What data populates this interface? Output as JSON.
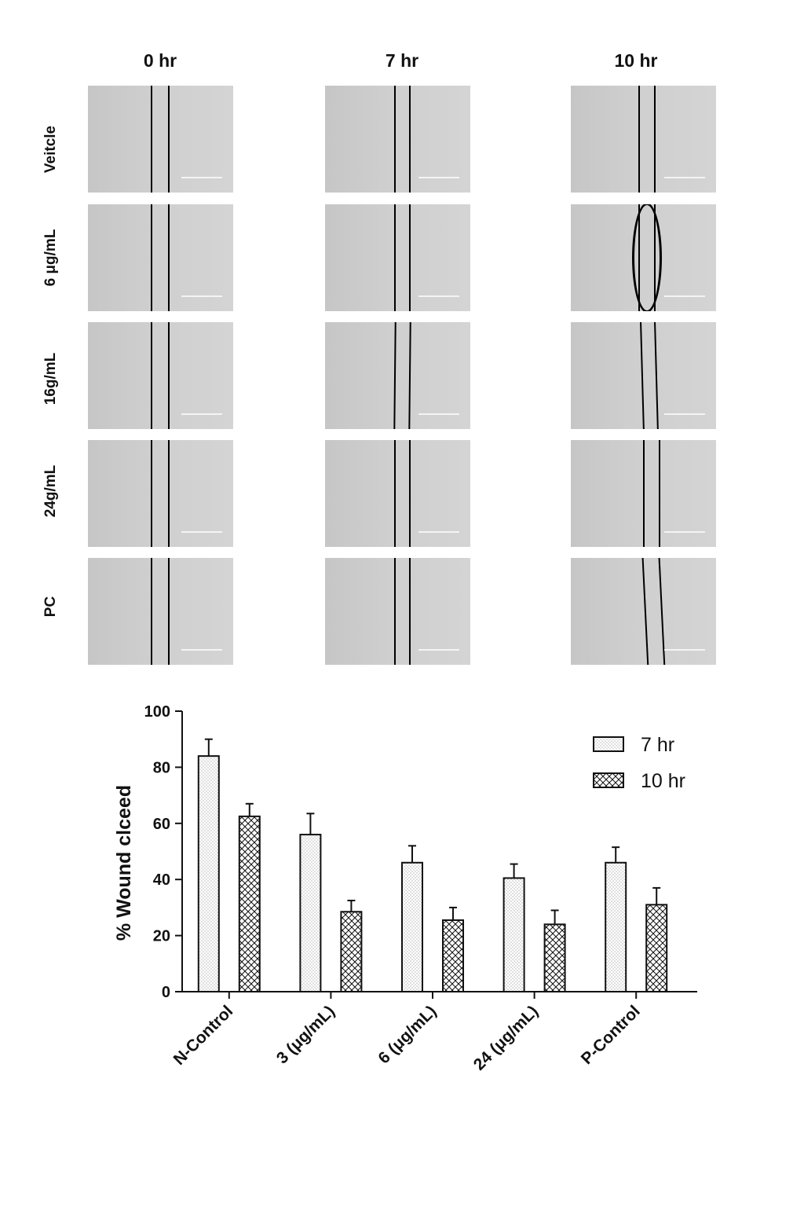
{
  "micrographs": {
    "columns": [
      "0 hr",
      "7 hr",
      "10 hr"
    ],
    "rows": [
      "Veitcle",
      "6 μg/mL",
      "16g/mL",
      "24g/mL",
      "PC"
    ]
  },
  "chart_data": {
    "type": "bar",
    "ylabel": "% Wound clceed",
    "xlabel": "",
    "ylim": [
      0,
      100
    ],
    "yticks": [
      0,
      20,
      40,
      60,
      80,
      100
    ],
    "categories": [
      "N-Control",
      "3 (μg/mL)",
      "6 (μg/mL)",
      "24 (μg/mL)",
      "P-Control"
    ],
    "series": [
      {
        "name": "7 hr",
        "pattern": "dots",
        "values": [
          84,
          56,
          46,
          40.5,
          46
        ],
        "errors": [
          6,
          7.5,
          6,
          5,
          5.5
        ]
      },
      {
        "name": "10 hr",
        "pattern": "crosshatch",
        "values": [
          62.5,
          28.5,
          25.5,
          24,
          31
        ],
        "errors": [
          4.5,
          4,
          4.5,
          5,
          6
        ]
      }
    ],
    "legend": "top-right",
    "grid": false
  }
}
